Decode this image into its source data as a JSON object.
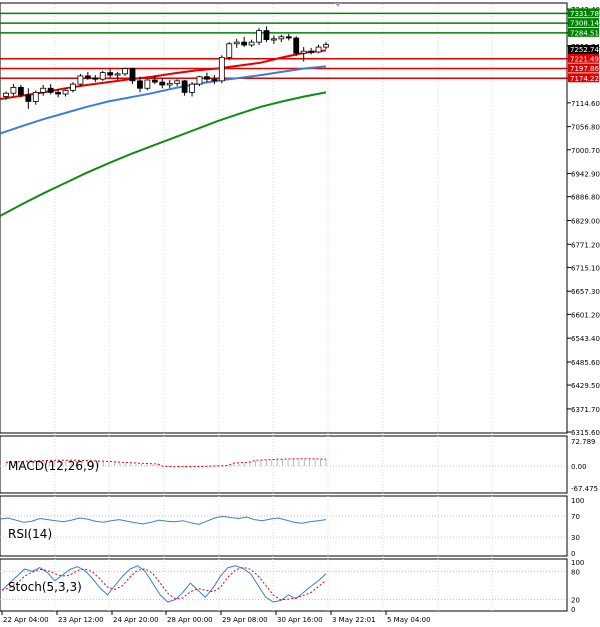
{
  "chart_data": [
    {
      "type": "candlestick",
      "ylim": [
        6315.6,
        7342.4
      ],
      "y_ticks": [
        "7342.40",
        "7331.78",
        "7308.14",
        "7284.51",
        "7252.74",
        "7221.49",
        "7197.86",
        "7174.22",
        "7114.60",
        "7056.80",
        "7000.70",
        "6942.90",
        "6886.80",
        "6829.00",
        "6771.20",
        "6715.10",
        "6657.30",
        "6601.20",
        "6543.40",
        "6485.60",
        "6429.50",
        "6371.70",
        "6315.60"
      ],
      "x_ticks": [
        "22 Apr 04:00",
        "23 Apr 12:00",
        "24 Apr 20:00",
        "28 Apr 00:00",
        "29 Apr 08:00",
        "30 Apr 16:00",
        "3 May 22:01",
        "5 May 04:00"
      ],
      "current_price": 7252.74,
      "levels": [
        {
          "value": 7331.78,
          "color": "#008000",
          "label": "7331.78"
        },
        {
          "value": 7308.14,
          "color": "#008000",
          "label": "7308.14"
        },
        {
          "value": 7284.51,
          "color": "#008000",
          "label": "7284.51"
        },
        {
          "value": 7221.49,
          "color": "#e00000",
          "label": "7221.49"
        },
        {
          "value": 7197.86,
          "color": "#e00000",
          "label": "7197.86"
        },
        {
          "value": 7174.22,
          "color": "#e00000",
          "label": "7174.22"
        }
      ],
      "ohlc": [
        [
          7130,
          7142,
          7122,
          7138
        ],
        [
          7138,
          7160,
          7132,
          7152
        ],
        [
          7152,
          7158,
          7128,
          7134
        ],
        [
          7134,
          7150,
          7100,
          7118
        ],
        [
          7118,
          7145,
          7110,
          7140
        ],
        [
          7140,
          7158,
          7132,
          7150
        ],
        [
          7150,
          7160,
          7135,
          7140
        ],
        [
          7140,
          7148,
          7128,
          7136
        ],
        [
          7136,
          7150,
          7130,
          7145
        ],
        [
          7145,
          7165,
          7140,
          7160
        ],
        [
          7160,
          7185,
          7155,
          7180
        ],
        [
          7180,
          7190,
          7170,
          7175
        ],
        [
          7175,
          7182,
          7165,
          7172
        ],
        [
          7172,
          7192,
          7168,
          7188
        ],
        [
          7188,
          7196,
          7175,
          7182
        ],
        [
          7182,
          7190,
          7170,
          7185
        ],
        [
          7185,
          7200,
          7180,
          7198
        ],
        [
          7198,
          7200,
          7160,
          7168
        ],
        [
          7168,
          7178,
          7140,
          7150
        ],
        [
          7150,
          7175,
          7145,
          7170
        ],
        [
          7170,
          7180,
          7160,
          7165
        ],
        [
          7165,
          7175,
          7150,
          7158
        ],
        [
          7158,
          7170,
          7150,
          7162
        ],
        [
          7162,
          7172,
          7155,
          7168
        ],
        [
          7168,
          7170,
          7132,
          7140
        ],
        [
          7140,
          7165,
          7130,
          7160
        ],
        [
          7160,
          7180,
          7155,
          7178
        ],
        [
          7178,
          7188,
          7165,
          7172
        ],
        [
          7172,
          7182,
          7160,
          7168
        ],
        [
          7168,
          7230,
          7162,
          7225
        ],
        [
          7225,
          7262,
          7218,
          7258
        ],
        [
          7258,
          7270,
          7248,
          7262
        ],
        [
          7262,
          7275,
          7250,
          7255
        ],
        [
          7255,
          7268,
          7250,
          7262
        ],
        [
          7262,
          7296,
          7255,
          7290
        ],
        [
          7290,
          7300,
          7262,
          7268
        ],
        [
          7268,
          7278,
          7258,
          7270
        ],
        [
          7270,
          7280,
          7262,
          7275
        ],
        [
          7275,
          7282,
          7266,
          7272
        ],
        [
          7272,
          7276,
          7228,
          7235
        ],
        [
          7235,
          7250,
          7215,
          7240
        ],
        [
          7240,
          7248,
          7232,
          7238
        ],
        [
          7238,
          7256,
          7235,
          7250
        ],
        [
          7250,
          7262,
          7245,
          7256
        ]
      ],
      "series": [
        {
          "values": [
            7124,
            7132,
            7140,
            7150,
            7158,
            7165,
            7172,
            7178,
            7186,
            7193,
            7198,
            7205,
            7212,
            7225,
            7236,
            7242
          ]
        },
        {
          "values": [
            7040,
            7058,
            7075,
            7090,
            7105,
            7118,
            7128,
            7138,
            7150,
            7160,
            7168,
            7175,
            7182,
            7190,
            7198,
            7203
          ]
        },
        {
          "values": [
            6840,
            6868,
            6895,
            6920,
            6945,
            6968,
            6990,
            7010,
            7030,
            7050,
            7070,
            7088,
            7105,
            7118,
            7130,
            7140
          ]
        }
      ]
    },
    {
      "type": "histogram",
      "label": "MACD(12,26,9)",
      "y_ticks": [
        "72.789",
        "0.00",
        "-67.475"
      ],
      "ylim": [
        -67.475,
        72.789
      ]
    },
    {
      "type": "line",
      "label": "RSI(14)",
      "y_ticks": [
        "100",
        "70",
        "30",
        "0"
      ],
      "ylim": [
        0,
        100
      ]
    },
    {
      "type": "line",
      "label": "Stoch(5,3,3)",
      "y_ticks": [
        "100",
        "80",
        "20",
        "0"
      ],
      "ylim": [
        0,
        100
      ]
    }
  ]
}
